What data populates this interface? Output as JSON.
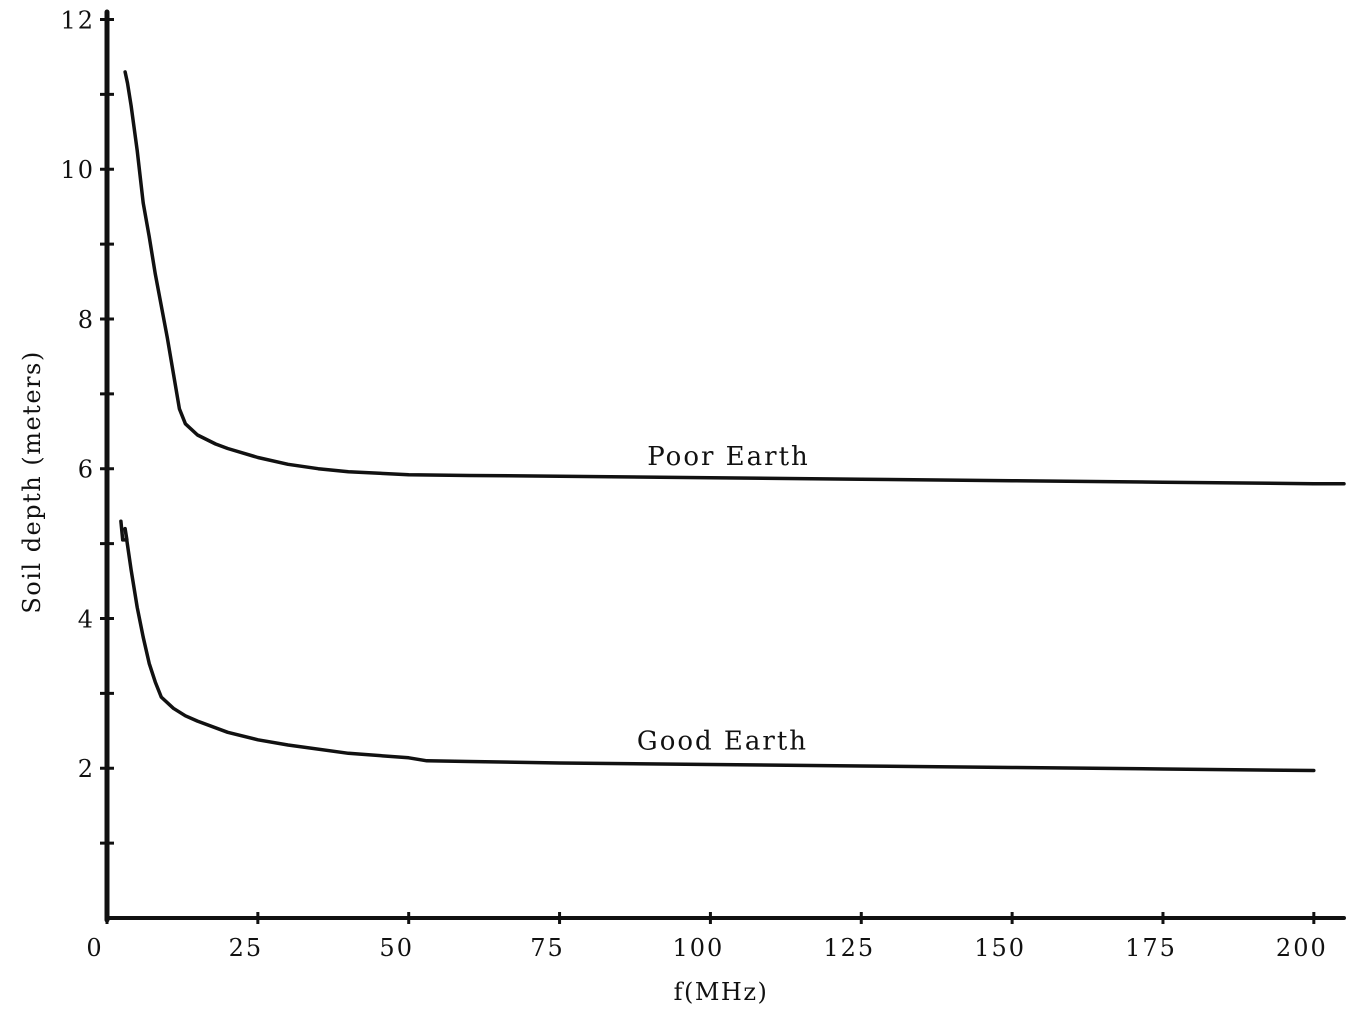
{
  "chart_data": {
    "type": "line",
    "title": "",
    "xlabel": "f(MHz)",
    "ylabel": "Soil depth (meters)",
    "xlim": [
      0,
      205
    ],
    "ylim": [
      0,
      12.1
    ],
    "x_ticks": [
      0,
      25,
      50,
      75,
      100,
      125,
      150,
      175,
      200
    ],
    "x_tick_labels": [
      "0",
      "25",
      "50",
      "75",
      "100",
      "125",
      "150",
      "175",
      "200"
    ],
    "y_ticks": [
      1,
      2,
      3,
      4,
      5,
      6,
      7,
      8,
      9,
      10,
      11,
      12
    ],
    "y_tick_labels": [
      "",
      "2",
      "",
      "4",
      "",
      "6",
      "",
      "8",
      "",
      "10",
      "",
      "12"
    ],
    "grid": false,
    "legend": "none",
    "line_color": "#111111",
    "series": [
      {
        "name": "Poor Earth",
        "label_at": [
          103,
          6.05
        ],
        "x": [
          3,
          3.4,
          4,
          5,
          6,
          7,
          8,
          10,
          12,
          13,
          15,
          18,
          20,
          25,
          30,
          35,
          40,
          50,
          60,
          75,
          100,
          125,
          150,
          175,
          200,
          205
        ],
        "y": [
          11.3,
          11.15,
          10.85,
          10.25,
          9.55,
          9.1,
          8.6,
          7.75,
          6.8,
          6.6,
          6.45,
          6.33,
          6.27,
          6.15,
          6.06,
          6.0,
          5.96,
          5.92,
          5.91,
          5.9,
          5.88,
          5.86,
          5.84,
          5.82,
          5.8,
          5.8
        ]
      },
      {
        "name": "Good Earth",
        "label_at": [
          102,
          2.25
        ],
        "x": [
          2.3,
          2.6,
          3.3,
          3.0,
          4,
          5,
          6,
          7,
          8,
          9,
          11,
          13,
          15,
          20,
          25,
          30,
          40,
          50,
          53,
          60,
          75,
          100,
          125,
          150,
          175,
          200
        ],
        "y": [
          5.3,
          5.05,
          5.05,
          5.2,
          4.65,
          4.15,
          3.75,
          3.4,
          3.15,
          2.95,
          2.8,
          2.7,
          2.63,
          2.48,
          2.38,
          2.31,
          2.2,
          2.14,
          2.1,
          2.09,
          2.07,
          2.05,
          2.03,
          2.01,
          1.99,
          1.97
        ]
      }
    ]
  }
}
